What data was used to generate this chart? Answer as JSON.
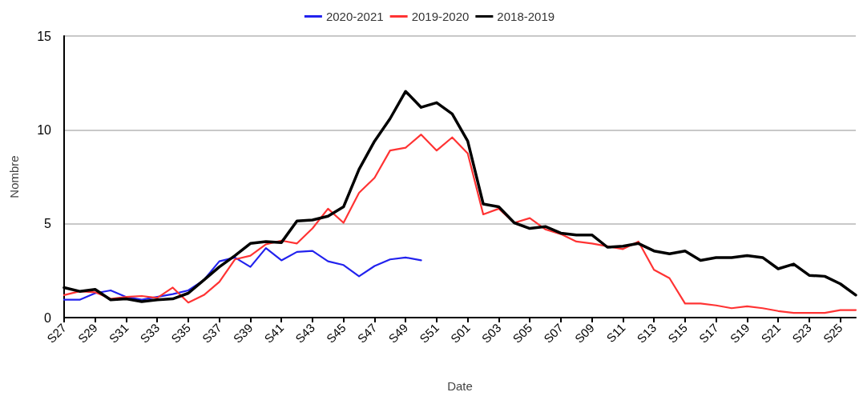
{
  "chart_data": {
    "type": "line",
    "xlabel": "Date",
    "ylabel": "Nombre",
    "categories": [
      "S27",
      null,
      "S29",
      null,
      "S31",
      null,
      "S33",
      null,
      "S35",
      null,
      "S37",
      null,
      "S39",
      null,
      "S41",
      null,
      "S43",
      null,
      "S45",
      null,
      "S47",
      null,
      "S49",
      null,
      "S51",
      null,
      "S01",
      null,
      "S03",
      null,
      "S05",
      null,
      "S07",
      null,
      "S09",
      null,
      "S11",
      null,
      "S13",
      null,
      "S15",
      null,
      "S17",
      null,
      "S19",
      null,
      "S21",
      null,
      "S23",
      null,
      "S25",
      null
    ],
    "series": [
      {
        "name": "2020-2021",
        "color": "#2222ee",
        "values": [
          0.95,
          0.95,
          1.3,
          1.45,
          1.1,
          0.95,
          1.1,
          1.25,
          1.45,
          2.0,
          3.0,
          3.2,
          2.7,
          3.7,
          3.05,
          3.5,
          3.55,
          3.0,
          2.8,
          2.2,
          2.75,
          3.1,
          3.2,
          3.05,
          null,
          null,
          null,
          null,
          null,
          null,
          null,
          null,
          null,
          null,
          null,
          null,
          null,
          null,
          null,
          null,
          null,
          null,
          null,
          null,
          null,
          null,
          null,
          null,
          null,
          null,
          null,
          null
        ]
      },
      {
        "name": "2019-2020",
        "color": "#ff3333",
        "values": [
          1.2,
          1.4,
          1.35,
          1.0,
          1.1,
          1.15,
          1.05,
          1.6,
          0.8,
          1.2,
          1.9,
          3.1,
          3.3,
          3.9,
          4.1,
          3.95,
          4.75,
          5.8,
          5.05,
          6.65,
          7.45,
          8.9,
          9.05,
          9.75,
          8.9,
          9.6,
          8.75,
          5.5,
          5.8,
          5.05,
          5.3,
          4.7,
          4.45,
          4.05,
          3.95,
          3.8,
          3.65,
          4.05,
          2.55,
          2.1,
          0.75,
          0.75,
          0.65,
          0.5,
          0.6,
          0.5,
          0.35,
          0.25,
          0.25,
          0.25,
          0.4,
          0.4
        ]
      },
      {
        "name": "2018-2019",
        "color": "#000000",
        "values": [
          1.6,
          1.4,
          1.5,
          0.95,
          1.0,
          0.85,
          0.95,
          1.0,
          1.3,
          2.0,
          2.7,
          3.3,
          3.95,
          4.05,
          4.0,
          5.15,
          5.2,
          5.4,
          5.9,
          7.9,
          9.4,
          10.6,
          12.05,
          11.2,
          11.45,
          10.85,
          9.4,
          6.05,
          5.9,
          5.05,
          4.75,
          4.85,
          4.5,
          4.4,
          4.4,
          3.75,
          3.8,
          3.95,
          3.55,
          3.4,
          3.55,
          3.05,
          3.2,
          3.2,
          3.3,
          3.2,
          2.6,
          2.85,
          2.25,
          2.2,
          1.8,
          1.2
        ]
      }
    ],
    "ylim": [
      0,
      15
    ],
    "yticks": [
      0,
      5,
      10,
      15
    ],
    "grid": "y",
    "legend": "top",
    "marker": "none",
    "line_style": "solid"
  }
}
